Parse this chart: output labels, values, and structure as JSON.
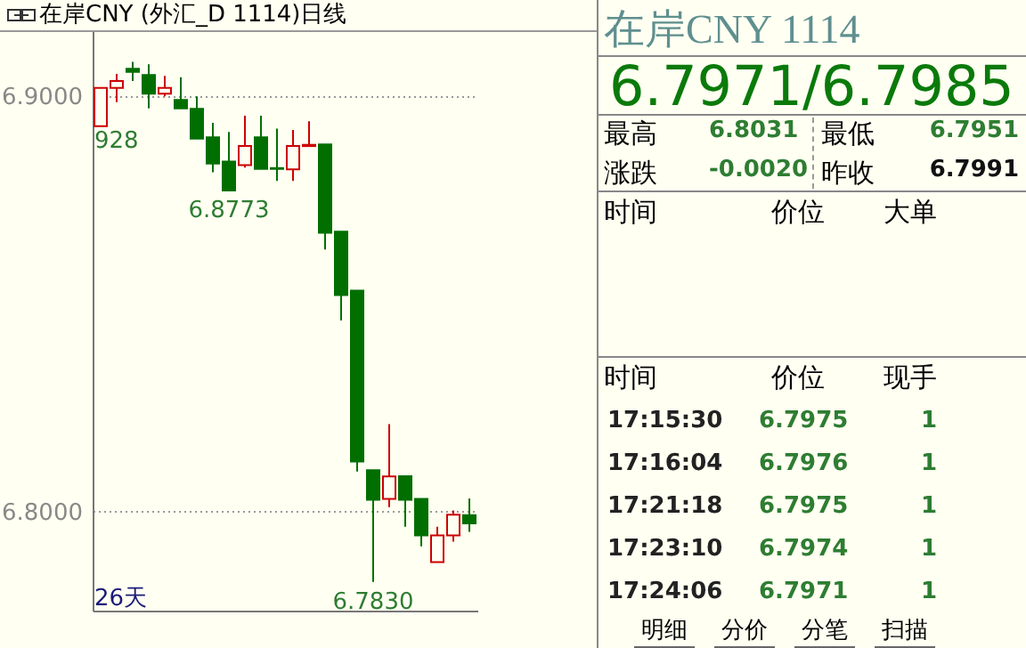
{
  "chart_data": [
    {
      "type": "candlestick",
      "title": "在岸CNY (外汇_D 1114)日线",
      "categories": [
        null,
        null,
        null,
        null,
        null,
        null,
        null,
        null,
        null,
        null,
        null,
        null,
        null,
        null,
        null,
        null,
        null,
        null,
        null,
        null,
        null,
        null,
        null,
        null
      ],
      "ohlc": [
        [
          6.8928,
          6.902,
          6.8928,
          6.902
        ],
        [
          6.902,
          6.9054,
          6.8986,
          6.9037
        ],
        [
          6.9066,
          6.9083,
          6.9037,
          6.9059
        ],
        [
          6.9051,
          6.9077,
          6.8971,
          6.9006
        ],
        [
          6.9006,
          6.9049,
          6.9,
          6.902
        ],
        [
          6.8991,
          6.9046,
          6.8971,
          6.8971
        ],
        [
          6.897,
          6.9,
          6.8898,
          6.8898
        ],
        [
          6.8901,
          6.8936,
          6.8817,
          6.8838
        ],
        [
          6.8843,
          6.8914,
          6.8773,
          6.8773
        ],
        [
          6.8834,
          6.8953,
          6.8828,
          6.888
        ],
        [
          6.8901,
          6.8953,
          6.8825,
          6.8825
        ],
        [
          6.8827,
          6.8922,
          6.8796,
          6.8825
        ],
        [
          6.8824,
          6.8919,
          6.8796,
          6.888
        ],
        [
          6.888,
          6.894,
          6.8879,
          6.8883
        ],
        [
          6.8884,
          6.8884,
          6.8631,
          6.8671
        ],
        [
          6.8674,
          6.8674,
          6.846,
          6.8521
        ],
        [
          6.8532,
          6.8532,
          6.8096,
          6.812
        ],
        [
          6.8099,
          6.8099,
          6.783,
          6.8028
        ],
        [
          6.803,
          6.821,
          6.801,
          6.8084
        ],
        [
          6.8085,
          6.8085,
          6.7963,
          6.8028
        ],
        [
          6.803,
          6.803,
          6.7916,
          6.7942
        ],
        [
          6.7878,
          6.7963,
          6.7878,
          6.7942
        ],
        [
          6.7942,
          6.8002,
          6.7927,
          6.7992
        ],
        [
          6.7991,
          6.8031,
          6.7951,
          6.7971
        ]
      ],
      "ylim": [
        6.7761,
        6.9159
      ],
      "yticks": [
        {
          "value": 6.9,
          "label": "6.9000"
        },
        {
          "value": 6.8,
          "label": "6.8000"
        }
      ],
      "grid": "y",
      "tick_labels": "y",
      "annotations": [
        "928",
        {
          "text": "6.8773",
          "y": 6.8773
        },
        {
          "text": "6.7830",
          "y": 6.783
        },
        "26天"
      ]
    },
    {
      "type": "other",
      "title": "在岸CNY    1114",
      "annotations": [
        "6.7971/6.7985",
        "最高",
        "6.8031",
        "最低",
        "6.7951",
        "涨跌",
        "-0.0020",
        "昨收",
        "6.7991",
        "时间",
        "价位",
        "大单",
        "时间",
        "价位",
        "现手",
        "17:15:30",
        "6.7975",
        "1",
        "17:16:04",
        "6.7976",
        "1",
        "17:21:18",
        "6.7975",
        "1",
        "17:23:10",
        "6.7974",
        "1",
        "17:24:06",
        "6.7971",
        "1",
        "明细",
        "分价",
        "分笔",
        "扫描"
      ]
    }
  ]
}
